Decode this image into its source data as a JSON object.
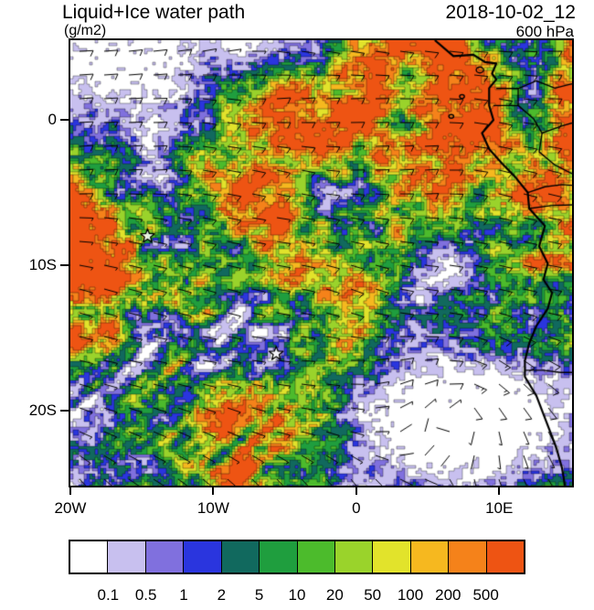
{
  "header": {
    "title": "Liquid+Ice water path",
    "datetime": "2018-10-02_12",
    "units": "(g/m2)",
    "level": "600 hPa"
  },
  "chart_data": {
    "type": "heatmap",
    "title": "Liquid+Ice water path",
    "units": "g/m2",
    "pressure_level": "600 hPa",
    "valid_time": "2018-10-02_12",
    "projection": "lat-lon map of tropical east Atlantic and west-central Africa",
    "x_axis": {
      "ticks": [
        {
          "label": "20W",
          "lon": -20
        },
        {
          "label": "10W",
          "lon": -10
        },
        {
          "label": "0",
          "lon": 0
        },
        {
          "label": "10E",
          "lon": 10
        }
      ],
      "range_lon": [
        -20,
        15.1
      ]
    },
    "y_axis": {
      "ticks": [
        {
          "label": "0",
          "lat": 0
        },
        {
          "label": "10S",
          "lat": -10
        },
        {
          "label": "20S",
          "lat": -20
        }
      ],
      "range_lat": [
        5.5,
        -25.2
      ]
    },
    "colorbar": {
      "boundary_labels": [
        "0.1",
        "0.5",
        "1",
        "2",
        "5",
        "10",
        "20",
        "50",
        "100",
        "200",
        "500"
      ],
      "levels": [
        0.1,
        0.5,
        1,
        2,
        5,
        10,
        20,
        50,
        100,
        200,
        500
      ],
      "colors": [
        "#ffffff",
        "#c8c0ef",
        "#8070de",
        "#2a35de",
        "#11695e",
        "#1f9e3e",
        "#4cbb2c",
        "#9ad32b",
        "#e2e32b",
        "#f6b81f",
        "#f5821a",
        "#ee5413"
      ]
    },
    "overlays": [
      "wind barbs",
      "coastline of west-central Africa",
      "country borders",
      "star markers"
    ],
    "markers": [
      {
        "type": "star",
        "lon": -14.6,
        "lat": -8.0
      },
      {
        "type": "star",
        "lon": -5.6,
        "lat": -16.1
      }
    ],
    "field_features": [
      "broad speckled green/yellow water-path field between about 0 and 20S",
      "orange maxima (100-500 g/m2) near 15W 8S, along the Angolan coast and near the Gulf of Guinea coast",
      "clear white region with anticyclonic wind circulation centered near 5E 20S",
      "streaky SW-NE oriented cloud bands in the south-west sector",
      "scattered white/clear areas in the north-west corner"
    ]
  }
}
